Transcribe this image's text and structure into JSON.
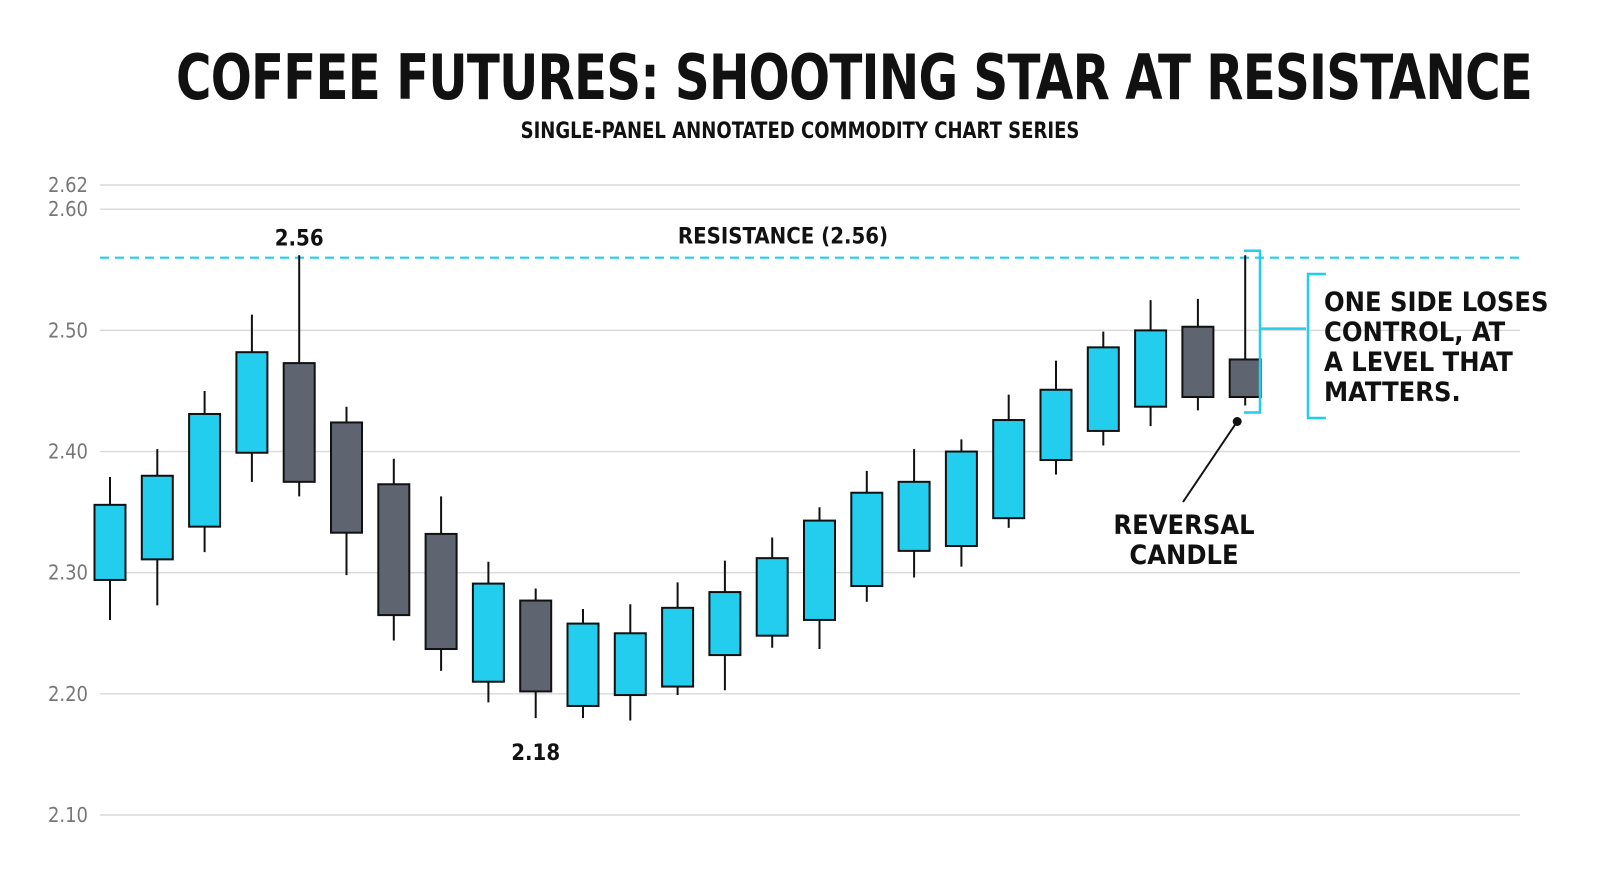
{
  "title": "COFFEE FUTURES: SHOOTING STAR AT RESISTANCE",
  "subtitle": "SINGLE-PANEL ANNOTATED COMMODITY CHART SERIES",
  "colors": {
    "bullish": "#22CDEE",
    "bearish": "#5F6570",
    "resistance": "#22CDEE",
    "grid": "#D9D9D9",
    "axis_text": "#777777"
  },
  "chart_data": {
    "type": "candlestick",
    "title": "COFFEE FUTURES: SHOOTING STAR AT RESISTANCE",
    "subtitle": "SINGLE-PANEL ANNOTATED COMMODITY CHART SERIES",
    "ylim": [
      2.1,
      2.62
    ],
    "yticks": [
      2.1,
      2.2,
      2.3,
      2.4,
      2.5,
      2.6,
      2.62
    ],
    "ytick_labels": [
      "2.10",
      "2.20",
      "2.30",
      "2.40",
      "2.50",
      "2.60",
      "2.62"
    ],
    "grid": true,
    "candles": [
      {
        "open": 2.294,
        "high": 2.379,
        "low": 2.261,
        "close": 2.356
      },
      {
        "open": 2.311,
        "high": 2.402,
        "low": 2.273,
        "close": 2.38
      },
      {
        "open": 2.338,
        "high": 2.45,
        "low": 2.317,
        "close": 2.431
      },
      {
        "open": 2.399,
        "high": 2.513,
        "low": 2.375,
        "close": 2.482
      },
      {
        "open": 2.473,
        "high": 2.562,
        "low": 2.363,
        "close": 2.375
      },
      {
        "open": 2.424,
        "high": 2.437,
        "low": 2.298,
        "close": 2.333
      },
      {
        "open": 2.373,
        "high": 2.394,
        "low": 2.244,
        "close": 2.265
      },
      {
        "open": 2.332,
        "high": 2.363,
        "low": 2.219,
        "close": 2.237
      },
      {
        "open": 2.21,
        "high": 2.309,
        "low": 2.193,
        "close": 2.291
      },
      {
        "open": 2.277,
        "high": 2.287,
        "low": 2.18,
        "close": 2.202
      },
      {
        "open": 2.19,
        "high": 2.27,
        "low": 2.18,
        "close": 2.258
      },
      {
        "open": 2.199,
        "high": 2.274,
        "low": 2.178,
        "close": 2.25
      },
      {
        "open": 2.206,
        "high": 2.292,
        "low": 2.199,
        "close": 2.271
      },
      {
        "open": 2.232,
        "high": 2.31,
        "low": 2.203,
        "close": 2.284
      },
      {
        "open": 2.248,
        "high": 2.329,
        "low": 2.238,
        "close": 2.312
      },
      {
        "open": 2.261,
        "high": 2.354,
        "low": 2.237,
        "close": 2.343
      },
      {
        "open": 2.289,
        "high": 2.384,
        "low": 2.276,
        "close": 2.366
      },
      {
        "open": 2.318,
        "high": 2.402,
        "low": 2.296,
        "close": 2.375
      },
      {
        "open": 2.322,
        "high": 2.41,
        "low": 2.305,
        "close": 2.4
      },
      {
        "open": 2.345,
        "high": 2.447,
        "low": 2.337,
        "close": 2.426
      },
      {
        "open": 2.393,
        "high": 2.475,
        "low": 2.381,
        "close": 2.451
      },
      {
        "open": 2.417,
        "high": 2.499,
        "low": 2.405,
        "close": 2.486
      },
      {
        "open": 2.437,
        "high": 2.525,
        "low": 2.421,
        "close": 2.5
      },
      {
        "open": 2.503,
        "high": 2.526,
        "low": 2.434,
        "close": 2.445
      },
      {
        "open": 2.476,
        "high": 2.562,
        "low": 2.438,
        "close": 2.445
      }
    ],
    "resistance": {
      "value": 2.56,
      "label": "RESISTANCE (2.56)"
    },
    "annotations": {
      "high_label": {
        "text": "2.56",
        "candle_index": 4,
        "value": 2.56
      },
      "low_label": {
        "text": "2.18",
        "candle_index": 9,
        "value": 2.18
      },
      "reversal_label": {
        "lines": [
          "REVERSAL",
          "CANDLE"
        ],
        "candle_index": 24
      },
      "callout": {
        "lines": [
          "ONE SIDE LOSES",
          "CONTROL, AT",
          "A LEVEL THAT",
          "MATTERS."
        ]
      }
    }
  }
}
